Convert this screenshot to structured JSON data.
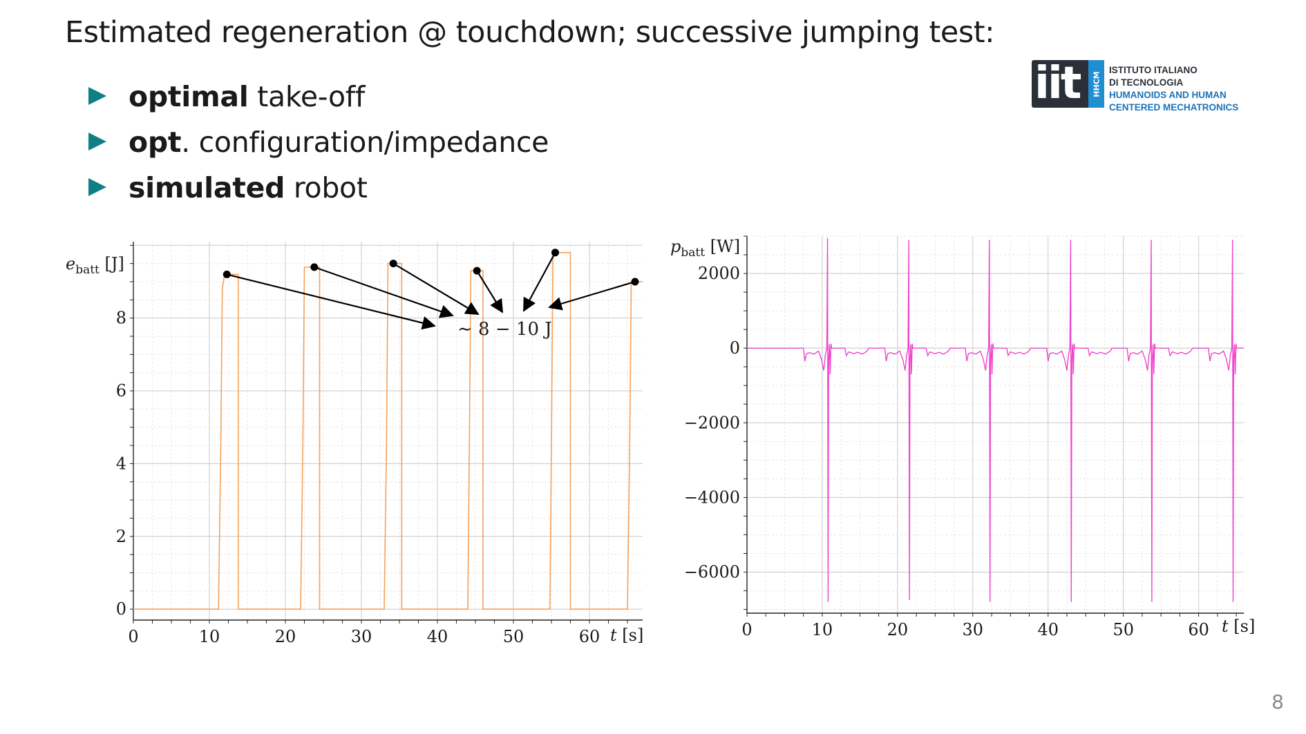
{
  "slide": {
    "title": "Estimated regeneration @ touchdown; successive jumping test:",
    "bullets": [
      {
        "bold": "optimal",
        "rest": " take-off"
      },
      {
        "bold": "opt",
        "rest": ". configuration/impedance"
      },
      {
        "bold": "simulated",
        "rest": " robot"
      }
    ],
    "page_number": "8"
  },
  "logo": {
    "mark": "iit",
    "side_tag": "HHCM",
    "lines": [
      "ISTITUTO ITALIANO",
      "DI TECNOLOGIA",
      "HUMANOIDS AND HUMAN",
      "CENTERED MECHATRONICS"
    ],
    "colors": {
      "dark": "#2b2f38",
      "blue": "#1a73b8"
    }
  },
  "chart_data": [
    {
      "type": "line",
      "color": "#f5a05a",
      "ylabel": "e_batt [J]",
      "xlabel": "t [s]",
      "xlim": [
        0,
        67
      ],
      "ylim": [
        -0.3,
        10.1
      ],
      "xticks": [
        0,
        10,
        20,
        30,
        40,
        50,
        60
      ],
      "yticks": [
        0,
        2,
        4,
        6,
        8
      ],
      "grid": true,
      "series": [
        {
          "x": [
            0,
            11.2,
            11.5,
            11.7,
            12.0,
            13.8,
            13.8,
            22.0,
            22.3,
            22.5,
            24.5,
            24.5,
            33.0,
            33.3,
            33.5,
            35.3,
            35.3,
            44.0,
            44.2,
            44.4,
            46.0,
            46.0,
            54.8,
            55.0,
            55.2,
            57.5,
            57.5,
            65.0,
            65.3,
            65.5,
            67
          ],
          "y": [
            0,
            0,
            4.5,
            8.8,
            9.2,
            9.2,
            0,
            0,
            4.5,
            9.4,
            9.4,
            0,
            0,
            4.5,
            9.5,
            9.5,
            0,
            0,
            4.5,
            9.3,
            9.3,
            0,
            0,
            4.5,
            9.8,
            9.8,
            0,
            0,
            4.5,
            9.0,
            9.0
          ]
        }
      ],
      "annotation": {
        "text": "∼ 8 − 10 J",
        "points": [
          [
            12.3,
            9.2
          ],
          [
            23.8,
            9.4
          ],
          [
            34.2,
            9.5
          ],
          [
            45.2,
            9.3
          ],
          [
            55.5,
            9.8
          ],
          [
            66.0,
            9.0
          ]
        ]
      }
    },
    {
      "type": "line",
      "color": "#ee44cc",
      "ylabel": "p_batt [W]",
      "xlabel": "t [s]",
      "xlim": [
        0,
        66
      ],
      "ylim": [
        -7100,
        3000
      ],
      "xticks": [
        0,
        10,
        20,
        30,
        40,
        50,
        60
      ],
      "yticks": [
        2000,
        0,
        -2000,
        -4000,
        -6000
      ],
      "grid": true,
      "spikes": [
        {
          "t": 10.7,
          "high": 2950,
          "low": -6800
        },
        {
          "t": 21.5,
          "high": 2900,
          "low": -6750
        },
        {
          "t": 32.2,
          "high": 2900,
          "low": -6800
        },
        {
          "t": 43.0,
          "high": 2900,
          "low": -6800
        },
        {
          "t": 53.7,
          "high": 2900,
          "low": -6800
        },
        {
          "t": 64.5,
          "high": 2900,
          "low": -6800
        }
      ]
    }
  ]
}
